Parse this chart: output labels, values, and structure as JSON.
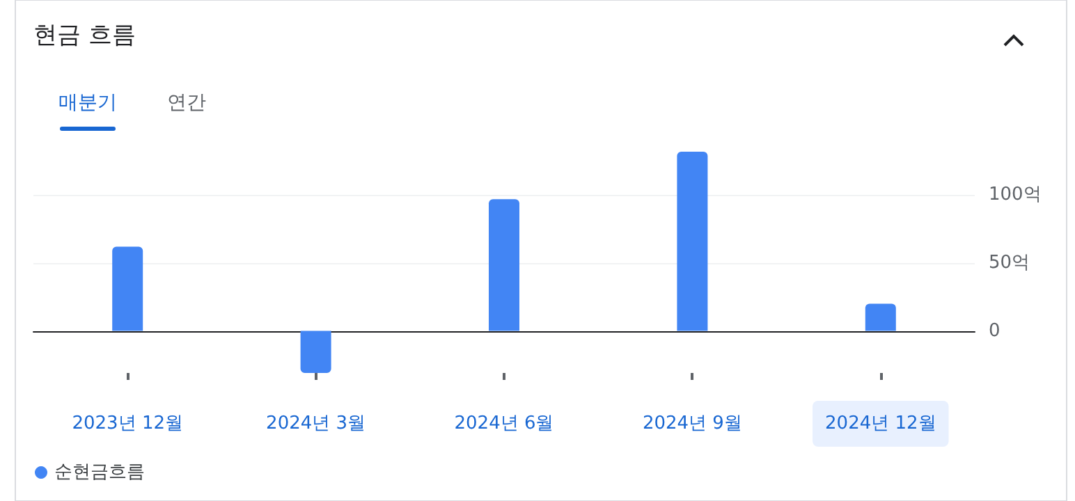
{
  "chart_data": {
    "type": "bar",
    "title": "현금 흐름",
    "annotations": [
      "매분기",
      "연간"
    ],
    "categories": [
      "2023년 12월",
      "2024년 3월",
      "2024년 6월",
      "2024년 9월",
      "2024년 12월"
    ],
    "series": [
      {
        "name": "순현금흐름",
        "color": "#4285f4",
        "values": [
          62,
          -31,
          97,
          132,
          20
        ]
      }
    ],
    "ylim": [
      -31,
      132
    ],
    "yticks": [
      0,
      {
        "value": 50,
        "label": "50억"
      },
      {
        "value": 100,
        "label": "100억"
      }
    ],
    "grid": "y",
    "legend": "bottom left"
  }
}
